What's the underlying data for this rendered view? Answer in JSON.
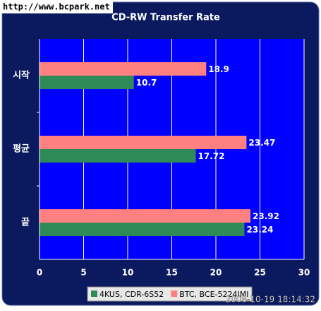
{
  "chart_data": {
    "type": "bar",
    "orientation": "horizontal",
    "title": "CD-RW Transfer Rate",
    "watermark": "http://www.bcpark.net",
    "timestamp": "2008-10-19 18:14:32",
    "categories": [
      "시작",
      "평균",
      "끝"
    ],
    "series": [
      {
        "name": "4KUS, CDR-6S52",
        "color": "#2e8b57",
        "values": [
          10.7,
          17.72,
          23.24
        ]
      },
      {
        "name": "BTC, BCE-5224IMI",
        "color": "#ff8080",
        "values": [
          18.9,
          23.47,
          23.92
        ]
      }
    ],
    "xlim": [
      0,
      30
    ],
    "xticks": [
      0,
      5,
      10,
      15,
      20,
      25,
      30
    ],
    "grid": true
  }
}
